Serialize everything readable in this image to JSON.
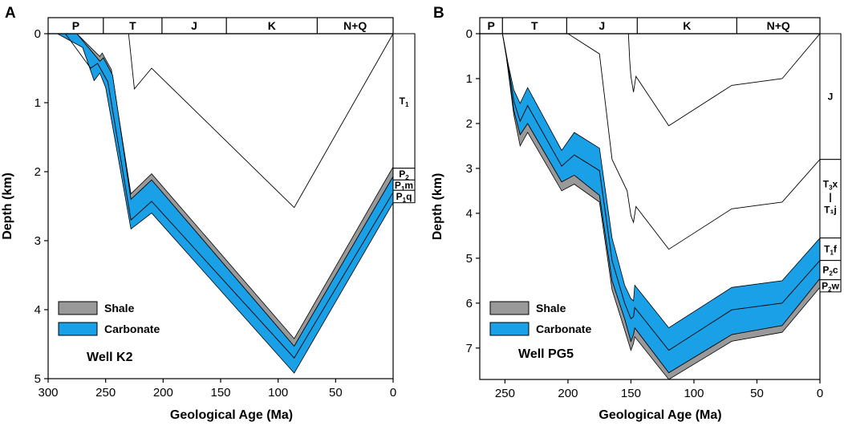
{
  "colors": {
    "shale": "#999999",
    "carbonate": "#1aa0e6",
    "line": "#000000",
    "background": "#ffffff"
  },
  "chart_data": [
    {
      "type": "area",
      "panel_label": "A",
      "title": "Well K2",
      "xlabel": "Geological Age (Ma)",
      "ylabel": "Depth (km)",
      "xlim": [
        300,
        0
      ],
      "ylim": [
        0,
        5
      ],
      "x_ticks": [
        300,
        250,
        200,
        150,
        100,
        50,
        0
      ],
      "y_ticks": [
        0,
        1,
        2,
        3,
        4,
        5
      ],
      "periods": [
        {
          "label": "P",
          "start": 300,
          "end": 252
        },
        {
          "label": "T",
          "start": 252,
          "end": 201
        },
        {
          "label": "J",
          "start": 201,
          "end": 145
        },
        {
          "label": "K",
          "start": 145,
          "end": 66
        },
        {
          "label": "N+Q",
          "start": 66,
          "end": 0
        }
      ],
      "strata": [
        {
          "base": "T",
          "sub": "1",
          "rest": "",
          "top": 0.0,
          "bottom": 1.95
        },
        {
          "base": "P",
          "sub": "2",
          "rest": "",
          "top": 1.95,
          "bottom": 2.12
        },
        {
          "base": "P",
          "sub": "1",
          "rest": "m",
          "top": 2.12,
          "bottom": 2.27
        },
        {
          "base": "P",
          "sub": "1",
          "rest": "q",
          "top": 2.27,
          "bottom": 2.45
        }
      ],
      "legend": [
        {
          "label": "Shale",
          "key": "shale"
        },
        {
          "label": "Carbonate",
          "key": "carbonate"
        }
      ],
      "burial_lines": [
        [
          [
            230,
            0
          ],
          [
            225,
            0.8
          ],
          [
            210,
            0.5
          ],
          [
            86,
            2.52
          ],
          [
            0,
            0
          ]
        ]
      ],
      "shale_band": [
        [
          [
            275,
            0
          ],
          [
            255,
            0.33
          ],
          [
            253,
            0.28
          ],
          [
            245,
            0.52
          ],
          [
            228,
            2.32
          ],
          [
            210,
            2.03
          ],
          [
            86,
            4.42
          ],
          [
            0,
            1.93
          ]
        ],
        [
          [
            275,
            0
          ],
          [
            255,
            0.4
          ],
          [
            252,
            0.35
          ],
          [
            244,
            0.6
          ],
          [
            228,
            2.4
          ],
          [
            210,
            2.12
          ],
          [
            86,
            4.53
          ],
          [
            0,
            2.07
          ]
        ]
      ],
      "carbonate_band": [
        [
          [
            275,
            0
          ],
          [
            255,
            0.4
          ],
          [
            252,
            0.35
          ],
          [
            244,
            0.6
          ],
          [
            228,
            2.4
          ],
          [
            210,
            2.12
          ],
          [
            86,
            4.53
          ],
          [
            0,
            2.07
          ]
        ],
        [
          [
            292,
            0
          ],
          [
            270,
            0.2
          ],
          [
            260,
            0.68
          ],
          [
            255,
            0.57
          ],
          [
            250,
            0.78
          ],
          [
            228,
            2.83
          ],
          [
            210,
            2.6
          ],
          [
            86,
            4.92
          ],
          [
            0,
            2.45
          ]
        ]
      ],
      "carbonate_inner_line": [
        [
          285,
          0
        ],
        [
          263,
          0.5
        ],
        [
          257,
          0.43
        ],
        [
          248,
          0.7
        ],
        [
          228,
          2.7
        ],
        [
          210,
          2.43
        ],
        [
          86,
          4.7
        ],
        [
          0,
          2.3
        ]
      ]
    },
    {
      "type": "area",
      "panel_label": "B",
      "title": "Well PG5",
      "xlabel": "Geological Age (Ma)",
      "ylabel": "Depth (km)",
      "xlim": [
        270,
        0
      ],
      "ylim": [
        0,
        7.7
      ],
      "x_ticks": [
        250,
        200,
        150,
        100,
        50,
        0
      ],
      "y_ticks": [
        0,
        1,
        2,
        3,
        4,
        5,
        6,
        7
      ],
      "periods": [
        {
          "label": "P",
          "start": 270,
          "end": 252
        },
        {
          "label": "T",
          "start": 252,
          "end": 201
        },
        {
          "label": "J",
          "start": 201,
          "end": 145
        },
        {
          "label": "K",
          "start": 145,
          "end": 66
        },
        {
          "label": "N+Q",
          "start": 66,
          "end": 0
        }
      ],
      "strata": [
        {
          "base": "J",
          "sub": "",
          "rest": "",
          "top": 0.0,
          "bottom": 2.8
        },
        {
          "base": "T",
          "sub": "3",
          "rest": "x | T₁j",
          "top": 2.8,
          "bottom": 4.55
        },
        {
          "base": "T",
          "sub": "1",
          "rest": "f",
          "top": 4.55,
          "bottom": 5.05
        },
        {
          "base": "P",
          "sub": "2",
          "rest": "c",
          "top": 5.05,
          "bottom": 5.48
        },
        {
          "base": "P",
          "sub": "2",
          "rest": "w",
          "top": 5.48,
          "bottom": 5.75
        }
      ],
      "legend": [
        {
          "label": "Shale",
          "key": "shale"
        },
        {
          "label": "Carbonate",
          "key": "carbonate"
        }
      ],
      "burial_lines": [
        [
          [
            200,
            0
          ],
          [
            175,
            0.45
          ],
          [
            165,
            2.8
          ],
          [
            153,
            3.5
          ],
          [
            150,
            4.05
          ],
          [
            148,
            4.2
          ],
          [
            146,
            3.85
          ],
          [
            120,
            4.8
          ],
          [
            70,
            3.9
          ],
          [
            30,
            3.75
          ],
          [
            0,
            2.8
          ]
        ],
        [
          [
            152,
            0
          ],
          [
            151,
            0.6
          ],
          [
            150,
            0.95
          ],
          [
            148,
            1.3
          ],
          [
            146,
            0.95
          ],
          [
            120,
            2.05
          ],
          [
            70,
            1.15
          ],
          [
            30,
            1.0
          ],
          [
            0,
            0
          ]
        ]
      ],
      "shale_band": [
        [
          [
            252,
            0
          ],
          [
            249,
            0.5
          ],
          [
            243,
            1.7
          ],
          [
            238,
            2.25
          ],
          [
            232,
            2.0
          ],
          [
            205,
            3.3
          ],
          [
            195,
            3.15
          ],
          [
            175,
            3.6
          ],
          [
            165,
            5.5
          ],
          [
            155,
            6.35
          ],
          [
            150,
            6.85
          ],
          [
            148,
            6.7
          ],
          [
            147,
            6.55
          ],
          [
            120,
            7.55
          ],
          [
            70,
            6.7
          ],
          [
            30,
            6.5
          ],
          [
            0,
            5.45
          ]
        ],
        [
          [
            252,
            0
          ],
          [
            249,
            0.5
          ],
          [
            243,
            1.8
          ],
          [
            238,
            2.5
          ],
          [
            232,
            2.2
          ],
          [
            205,
            3.5
          ],
          [
            195,
            3.35
          ],
          [
            175,
            3.75
          ],
          [
            165,
            5.7
          ],
          [
            155,
            6.6
          ],
          [
            150,
            7.05
          ],
          [
            148,
            6.9
          ],
          [
            147,
            6.75
          ],
          [
            120,
            7.7
          ],
          [
            70,
            6.85
          ],
          [
            30,
            6.65
          ],
          [
            0,
            5.65
          ]
        ]
      ],
      "carbonate_band": [
        [
          [
            252,
            0
          ],
          [
            248,
            0.6
          ],
          [
            243,
            1.25
          ],
          [
            238,
            1.55
          ],
          [
            232,
            1.2
          ],
          [
            205,
            2.6
          ],
          [
            195,
            2.2
          ],
          [
            175,
            2.55
          ],
          [
            165,
            4.55
          ],
          [
            155,
            5.6
          ],
          [
            150,
            5.9
          ],
          [
            148,
            5.95
          ],
          [
            147,
            5.6
          ],
          [
            120,
            6.55
          ],
          [
            70,
            5.65
          ],
          [
            30,
            5.5
          ],
          [
            0,
            4.55
          ]
        ],
        [
          [
            252,
            0
          ],
          [
            249,
            0.5
          ],
          [
            243,
            1.7
          ],
          [
            238,
            2.25
          ],
          [
            232,
            2.0
          ],
          [
            205,
            3.3
          ],
          [
            195,
            3.15
          ],
          [
            175,
            3.6
          ],
          [
            165,
            5.5
          ],
          [
            155,
            6.35
          ],
          [
            150,
            6.85
          ],
          [
            148,
            6.7
          ],
          [
            147,
            6.55
          ],
          [
            120,
            7.55
          ],
          [
            70,
            6.7
          ],
          [
            30,
            6.5
          ],
          [
            0,
            5.45
          ]
        ]
      ],
      "carbonate_inner_line": [
        [
          252,
          0
        ],
        [
          248,
          0.6
        ],
        [
          243,
          1.5
        ],
        [
          238,
          1.95
        ],
        [
          232,
          1.6
        ],
        [
          205,
          2.95
        ],
        [
          195,
          2.7
        ],
        [
          175,
          3.05
        ],
        [
          165,
          5.05
        ],
        [
          155,
          6.0
        ],
        [
          150,
          6.35
        ],
        [
          148,
          6.3
        ],
        [
          147,
          6.1
        ],
        [
          120,
          7.05
        ],
        [
          70,
          6.15
        ],
        [
          30,
          6.0
        ],
        [
          0,
          5.05
        ]
      ]
    }
  ]
}
